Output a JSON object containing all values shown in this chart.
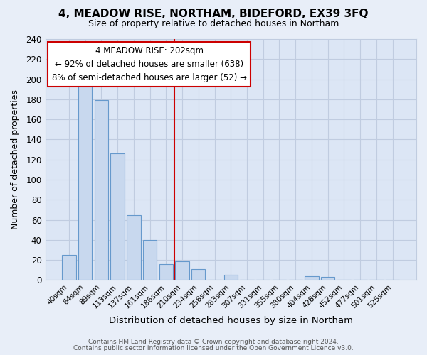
{
  "title": "4, MEADOW RISE, NORTHAM, BIDEFORD, EX39 3FQ",
  "subtitle": "Size of property relative to detached houses in Northam",
  "xlabel": "Distribution of detached houses by size in Northam",
  "ylabel": "Number of detached properties",
  "bar_labels": [
    "40sqm",
    "64sqm",
    "89sqm",
    "113sqm",
    "137sqm",
    "161sqm",
    "186sqm",
    "210sqm",
    "234sqm",
    "258sqm",
    "283sqm",
    "307sqm",
    "331sqm",
    "355sqm",
    "380sqm",
    "404sqm",
    "428sqm",
    "452sqm",
    "477sqm",
    "501sqm",
    "525sqm"
  ],
  "bar_values": [
    25,
    193,
    179,
    126,
    65,
    40,
    16,
    19,
    11,
    0,
    5,
    0,
    0,
    0,
    0,
    4,
    3,
    0,
    0,
    0,
    0
  ],
  "bar_face_color": "#c8d8ee",
  "bar_edge_color": "#6699cc",
  "vline_color": "#cc0000",
  "annotation_line1": "4 MEADOW RISE: 202sqm",
  "annotation_line2": "← 92% of detached houses are smaller (638)",
  "annotation_line3": "8% of semi-detached houses are larger (52) →",
  "ylim": [
    0,
    240
  ],
  "yticks": [
    0,
    20,
    40,
    60,
    80,
    100,
    120,
    140,
    160,
    180,
    200,
    220,
    240
  ],
  "footer_line1": "Contains HM Land Registry data © Crown copyright and database right 2024.",
  "footer_line2": "Contains public sector information licensed under the Open Government Licence v3.0.",
  "fig_bg_color": "#e8eef8",
  "plot_bg_color": "#dce6f5",
  "grid_color": "#c0cce0",
  "title_fontsize": 11,
  "subtitle_fontsize": 9
}
